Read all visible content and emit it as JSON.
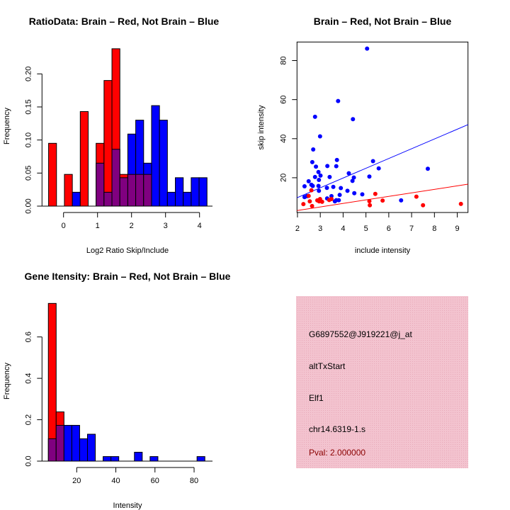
{
  "chart_data": [
    {
      "type": "bar",
      "subtype": "overlaid-histogram",
      "title": "RatioData: Brain – Red, Not Brain – Blue",
      "xlabel": "Log2 Ratio Skip/Include",
      "ylabel": "Frequency",
      "bin_start": -0.44,
      "bin_width": 0.233,
      "xticks": [
        "0",
        "1",
        "2",
        "3",
        "4"
      ],
      "yticks": [
        "0.00",
        "0.05",
        "0.10",
        "0.15",
        "0.20"
      ],
      "ylim": [
        0,
        0.24
      ],
      "series": [
        {
          "name": "Brain",
          "color": "#ff0000",
          "values": [
            0.095,
            0,
            0.048,
            0,
            0.143,
            0,
            0.095,
            0.19,
            0.238,
            0.048,
            0.048,
            0.048,
            0.048,
            0,
            0,
            0,
            0,
            0,
            0,
            0
          ]
        },
        {
          "name": "Not Brain",
          "color": "#0000ff",
          "values": [
            0,
            0,
            0,
            0.021,
            0,
            0,
            0.065,
            0.021,
            0.086,
            0.043,
            0.109,
            0.13,
            0.065,
            0.152,
            0.13,
            0.021,
            0.043,
            0.021,
            0.043,
            0.043
          ]
        }
      ],
      "overlap_color": "#800080"
    },
    {
      "type": "scatter",
      "title": "Brain – Red, Not Brain – Blue",
      "xlabel": "include intensity",
      "ylabel": "skip intensity",
      "xlim": [
        1.98,
        9.47
      ],
      "ylim": [
        2.2,
        89.5
      ],
      "xticks": [
        "2",
        "3",
        "4",
        "5",
        "6",
        "7",
        "8",
        "9"
      ],
      "yticks": [
        "20",
        "40",
        "60",
        "80"
      ],
      "series": [
        {
          "name": "Not Brain",
          "color": "#0000ff",
          "fit": {
            "slope": 5.0,
            "intercept": -0.15
          },
          "points": [
            [
              5.05,
              86.1
            ],
            [
              3.78,
              59.3
            ],
            [
              2.77,
              51.2
            ],
            [
              4.43,
              50.0
            ],
            [
              2.99,
              41.2
            ],
            [
              2.69,
              34.5
            ],
            [
              3.73,
              29.1
            ],
            [
              5.31,
              28.5
            ],
            [
              2.65,
              28.0
            ],
            [
              2.81,
              25.7
            ],
            [
              3.31,
              26.0
            ],
            [
              3.7,
              25.9
            ],
            [
              5.56,
              24.8
            ],
            [
              7.71,
              24.6
            ],
            [
              2.92,
              22.9
            ],
            [
              4.25,
              22.3
            ],
            [
              2.77,
              20.4
            ],
            [
              3.01,
              21.1
            ],
            [
              3.41,
              20.4
            ],
            [
              5.15,
              20.6
            ],
            [
              4.47,
              20.1
            ],
            [
              4.41,
              18.4
            ],
            [
              2.94,
              18.9
            ],
            [
              2.49,
              18.2
            ],
            [
              2.31,
              15.6
            ],
            [
              2.61,
              16.4
            ],
            [
              2.67,
              15.8
            ],
            [
              2.92,
              15.8
            ],
            [
              3.29,
              14.8
            ],
            [
              3.57,
              15.3
            ],
            [
              3.9,
              14.7
            ],
            [
              2.94,
              13.3
            ],
            [
              4.19,
              13.3
            ],
            [
              3.85,
              11.2
            ],
            [
              4.49,
              12.1
            ],
            [
              4.84,
              11.5
            ],
            [
              2.31,
              10.1
            ],
            [
              2.42,
              10.6
            ],
            [
              3.49,
              10.6
            ],
            [
              3.3,
              9.4
            ],
            [
              3.81,
              8.5
            ],
            [
              3.7,
              8.5
            ],
            [
              3.64,
              7.9
            ],
            [
              6.54,
              8.4
            ]
          ]
        },
        {
          "name": "Brain",
          "color": "#ff0000",
          "fit": {
            "slope": 1.8,
            "intercept": -0.35
          },
          "points": [
            [
              2.26,
              6.5
            ],
            [
              2.61,
              13.6
            ],
            [
              2.49,
              10.7
            ],
            [
              2.54,
              7.9
            ],
            [
              2.64,
              5.5
            ],
            [
              2.87,
              8.4
            ],
            [
              2.99,
              9.1
            ],
            [
              2.95,
              7.9
            ],
            [
              3.08,
              7.7
            ],
            [
              3.39,
              8.6
            ],
            [
              3.49,
              9.1
            ],
            [
              5.15,
              8.0
            ],
            [
              5.17,
              5.9
            ],
            [
              5.41,
              11.7
            ],
            [
              5.73,
              8.3
            ],
            [
              7.21,
              10.3
            ],
            [
              7.5,
              5.9
            ],
            [
              9.16,
              6.6
            ]
          ]
        }
      ]
    },
    {
      "type": "bar",
      "subtype": "overlaid-histogram",
      "title": "Gene Itensity: Brain – Red, Not Brain – Blue",
      "xlabel": "Intensity",
      "ylabel": "Frequency",
      "bin_start": 5.5,
      "bin_width": 4,
      "xticks": [
        "20",
        "40",
        "60",
        "80"
      ],
      "yticks": [
        "0.0",
        "0.2",
        "0.4",
        "0.6"
      ],
      "ylim": [
        0,
        0.77
      ],
      "series": [
        {
          "name": "Brain",
          "color": "#ff0000",
          "values": [
            0.762,
            0.238,
            0,
            0,
            0,
            0,
            0,
            0,
            0,
            0,
            0,
            0,
            0,
            0,
            0,
            0,
            0,
            0,
            0,
            0
          ]
        },
        {
          "name": "Not Brain",
          "color": "#0000ff",
          "values": [
            0.108,
            0.173,
            0.173,
            0.173,
            0.108,
            0.13,
            0,
            0.022,
            0.022,
            0,
            0,
            0.043,
            0,
            0.022,
            0,
            0,
            0,
            0,
            0,
            0.022
          ]
        }
      ],
      "overlap_color": "#800080"
    }
  ],
  "info_panel": {
    "background": "#f3c3cf",
    "lines": [
      "G6897552@J919221@j_at",
      "altTxStart",
      "Elf1",
      "chr14.6319-1.s"
    ],
    "pval": "Pval: 2.000000",
    "pval_color": "#8b0000"
  }
}
